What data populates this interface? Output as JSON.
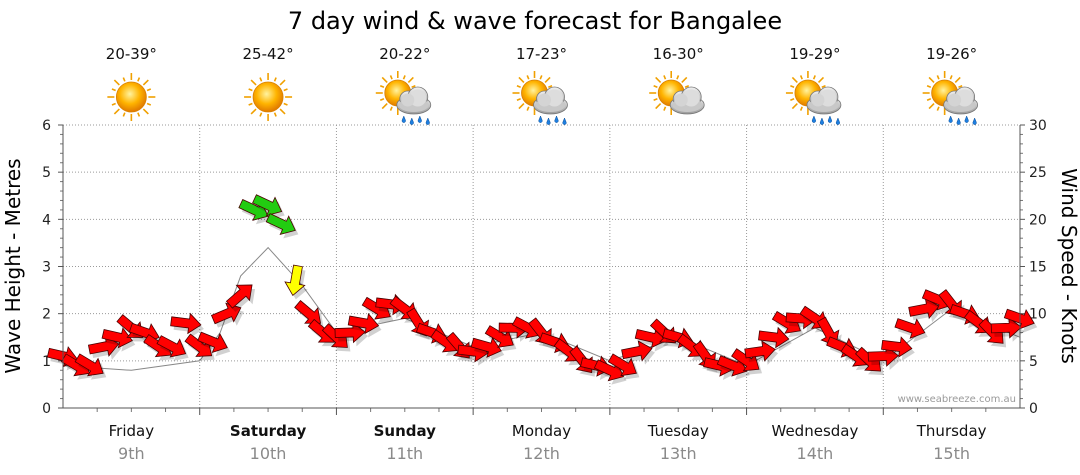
{
  "chart_data": {
    "type": "line",
    "title": "7 day wind & wave forecast for Bangalee",
    "ylabel_left": "Wave Height - Metres",
    "ylabel_right": "Wind Speed - Knots",
    "ylim_left": [
      0,
      6
    ],
    "ylim_right": [
      0,
      30
    ],
    "yticks_left": [
      "0",
      "1",
      "2",
      "3",
      "4",
      "5",
      "6"
    ],
    "yticks_right": [
      "0",
      "5",
      "10",
      "15",
      "20",
      "25",
      "30"
    ],
    "grid": true,
    "watermark": "www.seabreeze.com.au",
    "days": [
      {
        "name": "Friday",
        "date": "9th",
        "bold": false,
        "temp": "20-39°",
        "weather": "sunny"
      },
      {
        "name": "Saturday",
        "date": "10th",
        "bold": true,
        "temp": "25-42°",
        "weather": "sunny"
      },
      {
        "name": "Sunday",
        "date": "11th",
        "bold": true,
        "temp": "20-22°",
        "weather": "showers"
      },
      {
        "name": "Monday",
        "date": "12th",
        "bold": false,
        "temp": "17-23°",
        "weather": "showers"
      },
      {
        "name": "Tuesday",
        "date": "13th",
        "bold": false,
        "temp": "16-30°",
        "weather": "partly-cloudy"
      },
      {
        "name": "Wednesday",
        "date": "14th",
        "bold": false,
        "temp": "19-29°",
        "weather": "showers"
      },
      {
        "name": "Thursday",
        "date": "15th",
        "bold": false,
        "temp": "19-26°",
        "weather": "showers"
      }
    ],
    "wave_series": {
      "name": "Wave height (m)",
      "x_days": [
        0.0,
        0.5,
        1.0,
        1.15,
        1.3,
        1.5,
        1.75,
        2.0,
        2.5,
        3.0,
        3.5,
        4.0,
        4.5,
        5.0,
        5.5,
        6.0,
        6.5,
        7.0
      ],
      "values": [
        0.9,
        0.8,
        1.0,
        1.6,
        2.8,
        3.4,
        2.6,
        1.6,
        1.9,
        1.3,
        1.6,
        1.0,
        1.5,
        0.9,
        1.7,
        1.0,
        2.1,
        1.5
      ]
    },
    "wind_series": {
      "name": "Wind speed (knots)",
      "x_days": [
        0.0,
        0.1,
        0.2,
        0.3,
        0.4,
        0.5,
        0.6,
        0.7,
        0.8,
        0.9,
        1.0,
        1.1,
        1.2,
        1.3,
        1.4,
        1.5,
        1.6,
        1.7,
        1.8,
        1.9,
        2.0,
        2.1,
        2.2,
        2.3,
        2.4,
        2.5,
        2.6,
        2.7,
        2.8,
        2.9,
        3.0,
        3.1,
        3.2,
        3.3,
        3.4,
        3.5,
        3.6,
        3.7,
        3.8,
        3.9,
        4.0,
        4.1,
        4.2,
        4.3,
        4.4,
        4.5,
        4.6,
        4.7,
        4.8,
        4.9,
        5.0,
        5.1,
        5.2,
        5.3,
        5.4,
        5.5,
        5.6,
        5.7,
        5.8,
        5.9,
        6.0,
        6.1,
        6.2,
        6.3,
        6.4,
        6.5,
        6.6,
        6.7,
        6.8,
        6.9,
        7.0
      ],
      "values": [
        5.5,
        4.5,
        4.5,
        6.5,
        7.5,
        8.5,
        8.0,
        6.5,
        6.5,
        9.0,
        6.5,
        7.0,
        10.0,
        12.0,
        21.0,
        21.5,
        19.5,
        13.5,
        10.0,
        8.0,
        7.5,
        8.0,
        9.0,
        10.5,
        11.0,
        10.5,
        9.0,
        8.0,
        7.0,
        6.5,
        6.0,
        6.5,
        7.5,
        8.5,
        8.5,
        8.0,
        7.0,
        6.0,
        5.0,
        4.5,
        4.0,
        4.5,
        6.0,
        7.5,
        8.0,
        7.5,
        6.5,
        5.5,
        4.5,
        4.5,
        5.0,
        6.0,
        7.5,
        9.0,
        9.5,
        9.5,
        8.0,
        6.5,
        5.5,
        5.0,
        5.5,
        6.5,
        8.5,
        10.5,
        11.5,
        11.0,
        10.0,
        9.0,
        8.0,
        8.5,
        9.5
      ]
    }
  }
}
